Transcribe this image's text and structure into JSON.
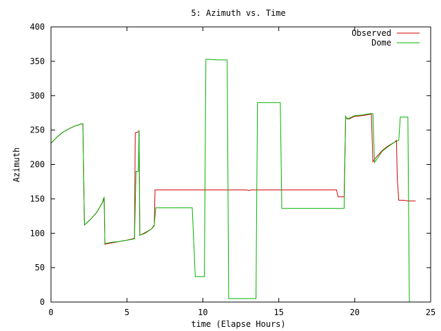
{
  "chart_data": {
    "type": "line",
    "title": "5: Azimuth vs. Time",
    "xlabel": "time (Elapse Hours)",
    "ylabel": "Azimuth",
    "xlim": [
      0,
      25
    ],
    "ylim": [
      0,
      400
    ],
    "xticks": [
      0,
      5,
      10,
      15,
      20,
      25
    ],
    "yticks": [
      0,
      50,
      100,
      150,
      200,
      250,
      300,
      350,
      400
    ],
    "grid": false,
    "legend_position": "top-right",
    "series": [
      {
        "name": "Observed",
        "color": "#d00000",
        "x": [
          0,
          0.4,
          0.8,
          1.2,
          1.6,
          2.0,
          2.1,
          2.2,
          2.6,
          3.0,
          3.4,
          3.5,
          3.55,
          4.0,
          4.5,
          5.0,
          5.4,
          5.5,
          5.55,
          5.7,
          5.8,
          5.85,
          6.2,
          6.6,
          6.8,
          6.85,
          7.0,
          9.0,
          12.0,
          12.9,
          13.0,
          13.2,
          15.0,
          18.0,
          18.8,
          18.9,
          19.2,
          19.3,
          19.4,
          19.6,
          20.0,
          20.5,
          21.0,
          21.1,
          21.2,
          21.4,
          21.8,
          22.2,
          22.6,
          22.75,
          22.8,
          22.9,
          23.2,
          23.5,
          24.0
        ],
        "y": [
          231,
          240,
          247,
          252,
          256,
          259,
          259,
          112,
          120,
          130,
          145,
          151,
          84,
          86,
          88,
          90,
          92,
          93,
          246,
          247,
          248,
          97,
          101,
          106,
          111,
          163,
          163,
          163,
          163,
          163,
          162,
          163,
          163,
          163,
          163,
          153,
          153,
          153,
          268,
          266,
          270,
          271,
          273,
          273,
          204,
          210,
          220,
          227,
          232,
          235,
          180,
          148,
          148,
          147,
          147
        ]
      },
      {
        "name": "Dome",
        "color": "#00b000",
        "x": [
          0,
          0.4,
          0.8,
          1.2,
          1.6,
          2.0,
          2.05,
          2.1,
          2.2,
          2.6,
          3.0,
          3.4,
          3.45,
          3.5,
          3.55,
          4.0,
          4.5,
          5.0,
          5.3,
          5.5,
          5.6,
          5.75,
          5.8,
          5.85,
          6.2,
          6.6,
          6.8,
          6.9,
          7.0,
          7.5,
          9.0,
          9.3,
          9.5,
          10.0,
          10.1,
          10.2,
          11.0,
          11.6,
          11.7,
          12.0,
          13.0,
          13.5,
          13.6,
          14.0,
          15.0,
          15.1,
          15.2,
          16.0,
          17.0,
          18.0,
          19.0,
          19.3,
          19.4,
          19.5,
          20.0,
          20.5,
          21.0,
          21.2,
          21.3,
          21.5,
          21.8,
          22.2,
          22.6,
          22.9,
          23.0,
          23.2,
          23.4,
          23.5,
          23.55,
          23.6
        ],
        "y": [
          231,
          240,
          247,
          252,
          256,
          259,
          259,
          259,
          112,
          120,
          130,
          145,
          150,
          152,
          85,
          87,
          88,
          90,
          91,
          92,
          190,
          190,
          250,
          97,
          100,
          106,
          112,
          137,
          137,
          137,
          137,
          137,
          37,
          37,
          37,
          353,
          352,
          352,
          5,
          5,
          5,
          5,
          290,
          290,
          290,
          290,
          136,
          136,
          136,
          136,
          136,
          136,
          270,
          266,
          271,
          272,
          274,
          274,
          203,
          209,
          219,
          226,
          232,
          235,
          269,
          269,
          269,
          269,
          130,
          0
        ]
      }
    ]
  }
}
